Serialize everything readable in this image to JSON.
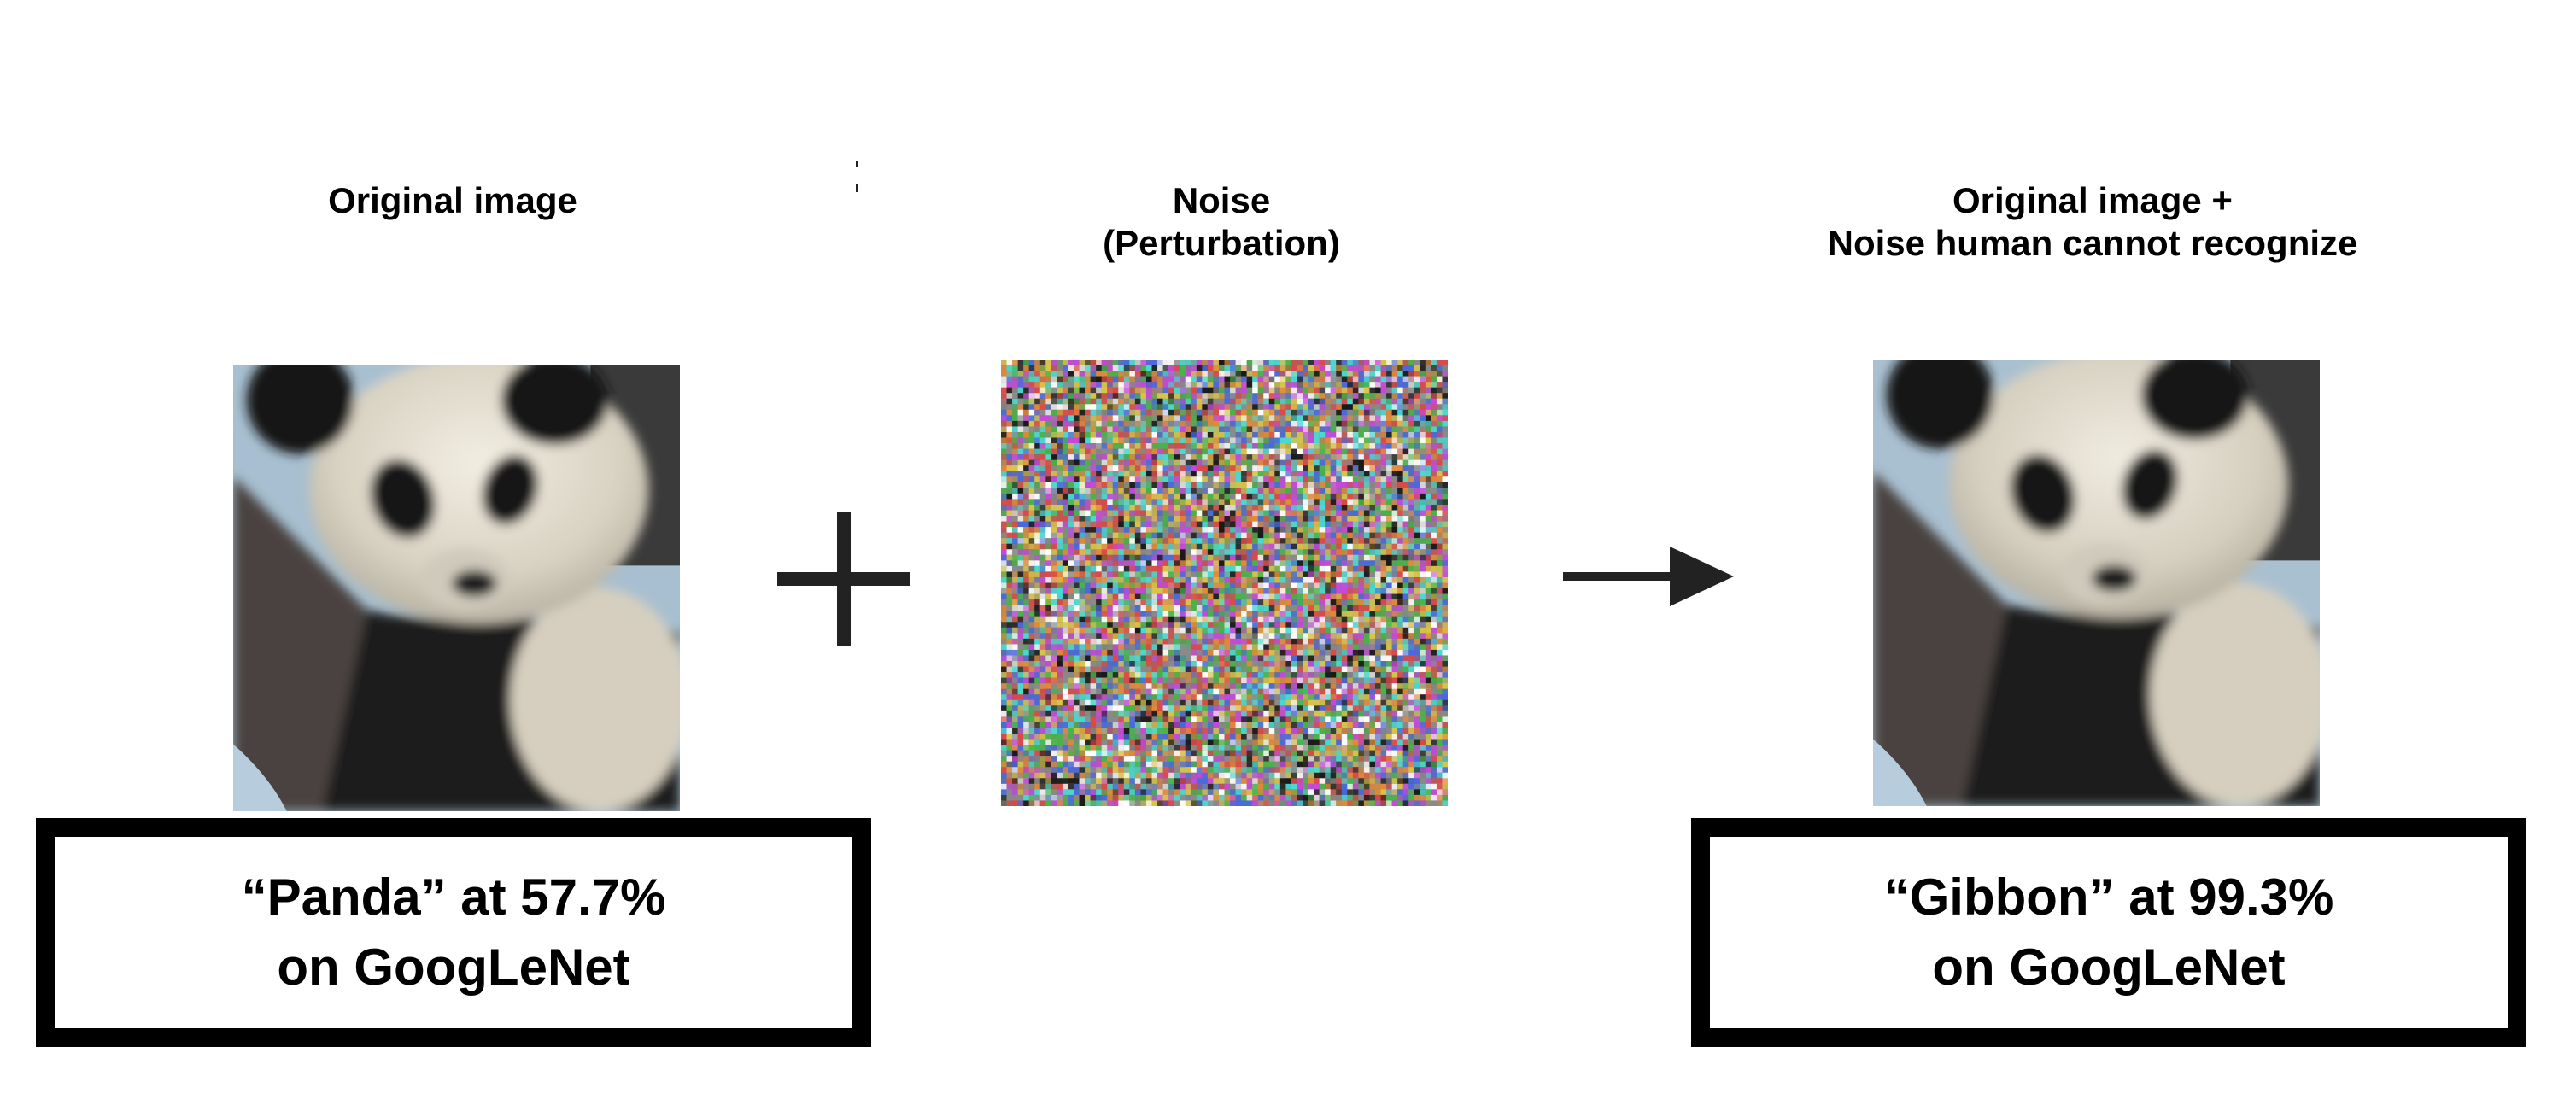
{
  "panels": {
    "original": {
      "caption_lines": [
        "Original image"
      ],
      "result_lines": [
        "“Panda” at 57.7%",
        "on GoogLeNet"
      ]
    },
    "noise": {
      "caption_lines": [
        "Noise",
        "(Perturbation)"
      ]
    },
    "adversarial": {
      "caption_lines": [
        "Original image +",
        "Noise human cannot recognize"
      ],
      "result_lines": [
        "“Gibbon” at 99.3%",
        "on GoogLeNet"
      ]
    }
  },
  "operators": {
    "plus": "plus-icon",
    "arrow": "right-arrow-icon"
  },
  "colors": {
    "panda_white": "#e6e0d2",
    "panda_black": "#141414",
    "background_blue": "#a7bfd0",
    "box_border": "#000000"
  }
}
